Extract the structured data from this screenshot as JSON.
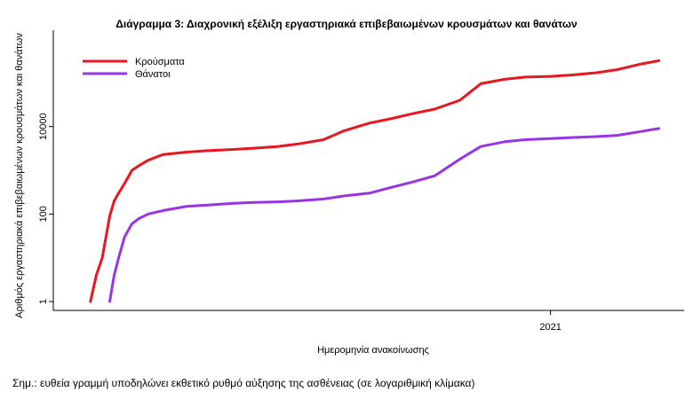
{
  "chart_data": {
    "type": "line",
    "title": "Διάγραμμα 3: Διαχρονική εξέλιξη εργαστηριακά επιβεβαιωμένων κρουσμάτων και θανάτων",
    "xlabel": "Ημερομηνία ανακοίνωσης",
    "ylabel": "Αριθμός εργαστηριακά επιβεβαιωμένων κρουσμάτων και θανάτων",
    "x_ticks": [
      "2021"
    ],
    "y_scale": "log",
    "y_ticks": [
      1,
      100,
      10000
    ],
    "y_tick_labels": [
      "1",
      "100",
      "10000"
    ],
    "ylim": [
      1,
      1000000
    ],
    "legend_position": "top-left",
    "grid": false,
    "x": [
      "2020-02-26",
      "2020-03-01",
      "2020-03-05",
      "2020-03-10",
      "2020-03-13",
      "2020-03-16",
      "2020-03-20",
      "2020-03-25",
      "2020-03-30",
      "2020-04-05",
      "2020-04-15",
      "2020-05-01",
      "2020-05-15",
      "2020-06-01",
      "2020-06-15",
      "2020-07-01",
      "2020-07-15",
      "2020-08-01",
      "2020-08-15",
      "2020-09-01",
      "2020-09-15",
      "2020-10-01",
      "2020-10-15",
      "2020-11-01",
      "2020-11-15",
      "2020-12-01",
      "2020-12-15",
      "2021-01-01",
      "2021-01-15",
      "2021-02-01",
      "2021-02-15",
      "2021-03-01",
      "2021-03-15"
    ],
    "series": [
      {
        "name": "Κρούσματα",
        "color": "#e8161e",
        "values": [
          1,
          4,
          10,
          90,
          200,
          300,
          500,
          1000,
          1300,
          1700,
          2300,
          2600,
          2800,
          3000,
          3200,
          3500,
          4000,
          5000,
          8000,
          12000,
          15000,
          20000,
          25000,
          40000,
          95000,
          120000,
          135000,
          140000,
          150000,
          170000,
          200000,
          260000,
          320000
        ]
      },
      {
        "name": "Θάνατοι",
        "color": "#9933e6",
        "values": [
          null,
          null,
          null,
          1,
          4,
          10,
          30,
          60,
          80,
          100,
          120,
          150,
          160,
          175,
          185,
          190,
          200,
          220,
          260,
          300,
          400,
          550,
          750,
          1800,
          3500,
          4500,
          5000,
          5300,
          5600,
          5900,
          6300,
          7500,
          9000
        ]
      }
    ]
  },
  "note": "Σημ.: ευθεία γραμμή υποδηλώνει εκθετικό ρυθμό αύξησης της ασθένειας (σε λογαριθμική κλίμακα)"
}
